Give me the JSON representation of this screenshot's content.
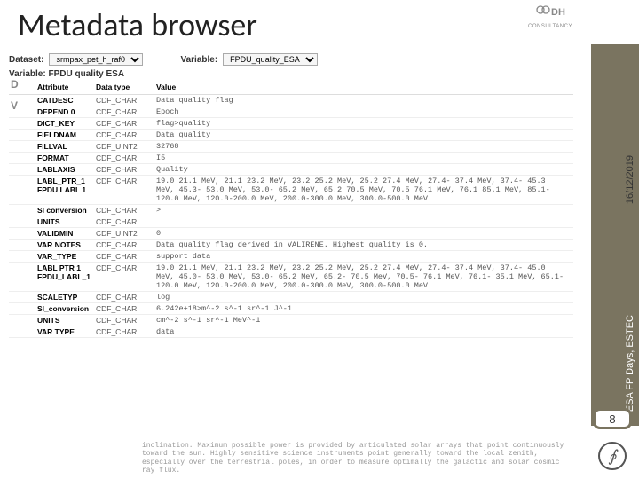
{
  "title": "Metadata browser",
  "logo": {
    "brand": "DH",
    "subtitle": "CONSULTANCY"
  },
  "sidebar": {
    "date": "16/12/2019",
    "conference": "ESA FP Days, ESTEC",
    "page_number": "8",
    "stripe_color": "#7a7460"
  },
  "selectors": {
    "dataset_label": "Dataset:",
    "dataset_value": "srmpax_pet_h_raf0",
    "variable_label": "Variable:",
    "variable_value": "FPDU_quality_ESA"
  },
  "subheader": "Variable: FPDU quality ESA",
  "columns": {
    "attr": "Attribute",
    "dtype": "Data type",
    "value": "Value"
  },
  "rows": [
    {
      "attr": "CATDESC",
      "dt": "CDF_CHAR",
      "val": "Data quality flag"
    },
    {
      "attr": "DEPEND 0",
      "dt": "CDF_CHAR",
      "val": "Epoch"
    },
    {
      "attr": "DICT_KEY",
      "dt": "CDF_CHAR",
      "val": "flag>quality"
    },
    {
      "attr": "FIELDNAM",
      "dt": "CDF_CHAR",
      "val": "Data quality"
    },
    {
      "attr": "FILLVAL",
      "dt": "CDF_UINT2",
      "val": "32768"
    },
    {
      "attr": "FORMAT",
      "dt": "CDF_CHAR",
      "val": "I5"
    },
    {
      "attr": "LABLAXIS",
      "dt": "CDF_CHAR",
      "val": "Quality"
    },
    {
      "attr": "LABL_PTR_1\nFPDU LABL 1",
      "dt": "CDF_CHAR",
      "val": "  19.0  21.1 MeV,   21.1  23.2 MeV,   23.2  25.2 MeV,   25.2  27.4 MeV,   27.4- 37.4 MeV,   37.4- 45.3 MeV,   45.3- 53.0 MeV,   53.0- 65.2 MeV,   65.2  70.5 MeV,   70.5  76.1 MeV,   76.1  85.1 MeV,   85.1-120.0 MeV,  120.0-200.0 MeV,  200.0-300.0 MeV,  300.0-500.0 MeV"
    },
    {
      "attr": "SI conversion",
      "dt": "CDF_CHAR",
      "val": ">"
    },
    {
      "attr": "UNITS",
      "dt": "CDF_CHAR",
      "val": ""
    },
    {
      "attr": "VALIDMIN",
      "dt": "CDF_UINT2",
      "val": "0"
    },
    {
      "attr": "VAR NOTES",
      "dt": "CDF_CHAR",
      "val": "Data quality flag derived in VALIRENE. Highest quality is 0."
    },
    {
      "attr": "VAR_TYPE",
      "dt": "CDF_CHAR",
      "val": "support data"
    },
    {
      "attr": "LABL PTR 1\nFPDU_LABL_1",
      "dt": "CDF_CHAR",
      "val": "  19.0  21.1 MeV,   21.1  23.2 MeV,   23.2  25.2 MeV,   25.2  27.4 MeV,   27.4- 37.4 MeV,   37.4- 45.0 MeV,   45.0- 53.0 MeV,   53.0- 65.2 MeV,   65.2- 70.5 MeV,   70.5- 76.1 MeV,   76.1- 35.1 MeV,   65.1-120.0 MeV,  120.0-200.0 MeV,  200.0-300.0 MeV,  300.0-500.0 MeV"
    },
    {
      "attr": "SCALETYP",
      "dt": "CDF_CHAR",
      "val": "log"
    },
    {
      "attr": "SI_conversion",
      "dt": "CDF_CHAR",
      "val": "6.242e+18>m^-2 s^-1 sr^-1 J^-1"
    },
    {
      "attr": "UNITS",
      "dt": "CDF_CHAR",
      "val": "cm^-2 s^-1 sr^-1 MeV^-1"
    },
    {
      "attr": "VAR TYPE",
      "dt": "CDF_CHAR",
      "val": "data"
    }
  ],
  "fade": "inclination. Maximum possible power is provided by articulated solar arrays that point continuously toward the sun. Highly sensitive science instruments point generally toward the local zenith, especially over the terrestrial poles, in order to measure optimally the galactic and solar cosmic ray flux."
}
